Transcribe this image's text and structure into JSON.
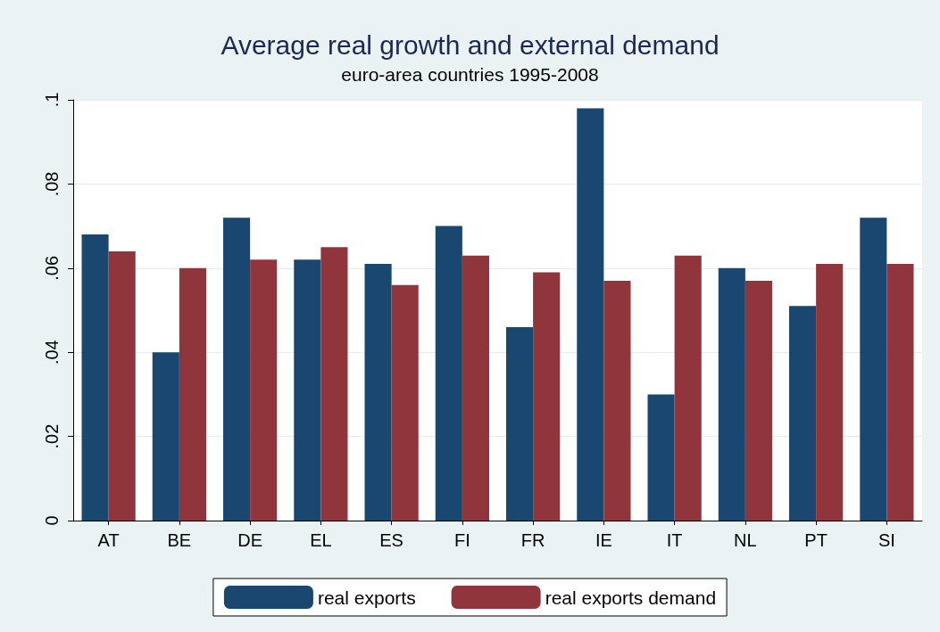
{
  "chart_data": {
    "type": "bar",
    "title": "Average real growth and external demand",
    "subtitle": "euro-area countries 1995-2008",
    "categories": [
      "AT",
      "BE",
      "DE",
      "EL",
      "ES",
      "FI",
      "FR",
      "IE",
      "IT",
      "NL",
      "PT",
      "SI"
    ],
    "series": [
      {
        "name": "real exports",
        "color": "#1a476f",
        "values": [
          0.068,
          0.04,
          0.072,
          0.062,
          0.061,
          0.07,
          0.046,
          0.098,
          0.03,
          0.06,
          0.051,
          0.072
        ]
      },
      {
        "name": "real exports demand",
        "color": "#90353b",
        "values": [
          0.064,
          0.06,
          0.062,
          0.065,
          0.056,
          0.063,
          0.059,
          0.057,
          0.063,
          0.057,
          0.061,
          0.061
        ]
      }
    ],
    "ylim": [
      0,
      0.1
    ],
    "yticks": [
      {
        "value": 0,
        "label": "0"
      },
      {
        "value": 0.02,
        "label": ".02"
      },
      {
        "value": 0.04,
        "label": ".04"
      },
      {
        "value": 0.06,
        "label": ".06"
      },
      {
        "value": 0.08,
        "label": ".08"
      },
      {
        "value": 0.1,
        "label": ".1"
      }
    ],
    "grid": "y",
    "legend": "bottom"
  }
}
